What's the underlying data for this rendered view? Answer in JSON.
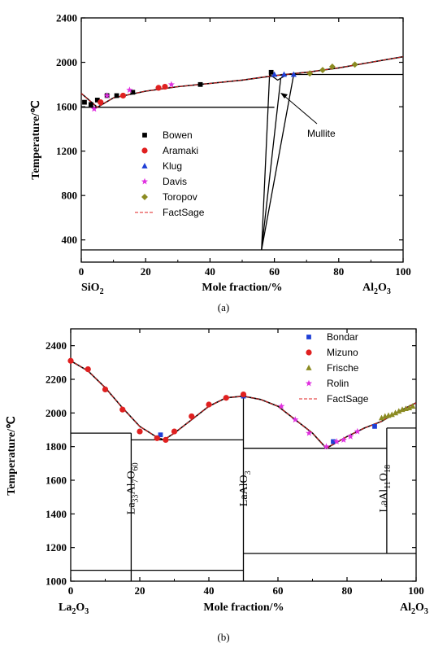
{
  "chart_data": [
    {
      "type": "scatter",
      "caption": "(a)",
      "xlabel": "Mole fraction/%",
      "ylabel": "Temperature/℃",
      "left_component": "SiO",
      "left_component_sub": "2",
      "right_component": "Al",
      "right_component_sub1": "2",
      "right_component_mid": "O",
      "right_component_sub2": "3",
      "xlim": [
        0,
        100
      ],
      "ylim": [
        200,
        2400
      ],
      "xticks": [
        "0",
        "20",
        "40",
        "60",
        "80",
        "100"
      ],
      "yticks": [
        "400",
        "800",
        "1200",
        "1600",
        "2000",
        "2400"
      ],
      "legend_position": "center-left",
      "annotation": "Mullite",
      "series": [
        {
          "name": "Bowen",
          "marker": "square",
          "color": "#000000",
          "x": [
            1,
            3,
            5,
            8,
            11,
            16,
            37,
            59
          ],
          "y": [
            1640,
            1620,
            1660,
            1700,
            1700,
            1730,
            1800,
            1910
          ]
        },
        {
          "name": "Aramaki",
          "marker": "circle",
          "color": "#e02020",
          "x": [
            6,
            13,
            24,
            26
          ],
          "y": [
            1640,
            1700,
            1770,
            1780
          ]
        },
        {
          "name": "Klug",
          "marker": "triangle",
          "color": "#1f3fd6",
          "x": [
            60,
            63,
            66
          ],
          "y": [
            1890,
            1890,
            1890
          ]
        },
        {
          "name": "Davis",
          "marker": "star",
          "color": "#e030e0",
          "x": [
            4,
            8,
            15,
            28
          ],
          "y": [
            1580,
            1700,
            1750,
            1800
          ]
        },
        {
          "name": "Toropov",
          "marker": "diamond",
          "color": "#8b8b22",
          "x": [
            71,
            75,
            78,
            85
          ],
          "y": [
            1900,
            1930,
            1960,
            1980
          ]
        }
      ],
      "calculated": {
        "name": "FactSage",
        "style": "dashed",
        "color": "#e02020",
        "x": [
          0,
          5,
          10,
          20,
          30,
          40,
          50,
          60,
          70,
          80,
          90,
          100
        ],
        "y": [
          1720,
          1595,
          1680,
          1740,
          1780,
          1810,
          1840,
          1880,
          1910,
          1950,
          2000,
          2050
        ]
      },
      "liquidus": {
        "x": [
          0,
          5,
          10,
          20,
          30,
          40,
          50,
          60,
          70,
          80,
          90,
          100
        ],
        "y": [
          1720,
          1595,
          1680,
          1740,
          1780,
          1810,
          1840,
          1880,
          1910,
          1950,
          2000,
          2050
        ]
      },
      "lines": [
        {
          "x": [
            0,
            60
          ],
          "y": [
            1595,
            1595
          ]
        },
        {
          "x": [
            62,
            100
          ],
          "y": [
            1890,
            1890
          ]
        },
        {
          "x": [
            0,
            100
          ],
          "y": [
            310,
            310
          ]
        },
        {
          "x": [
            56,
            58.5
          ],
          "y": [
            310,
            1890
          ]
        },
        {
          "x": [
            56,
            62
          ],
          "y": [
            310,
            1860
          ]
        },
        {
          "x": [
            58.5,
            61,
            64
          ],
          "y": [
            1890,
            1840,
            1890
          ]
        },
        {
          "x": [
            56,
            66
          ],
          "y": [
            310,
            1890
          ]
        }
      ]
    },
    {
      "type": "scatter",
      "caption": "(b)",
      "xlabel": "Mole fraction/%",
      "ylabel": "Temperature/℃",
      "left_component": "La",
      "left_component_sub1": "2",
      "left_component_mid": "O",
      "left_component_sub2": "3",
      "right_component": "Al",
      "right_component_sub1": "2",
      "right_component_mid": "O",
      "right_component_sub2": "3",
      "xlim": [
        0,
        100
      ],
      "ylim": [
        1000,
        2500
      ],
      "xticks": [
        "0",
        "20",
        "40",
        "60",
        "80",
        "100"
      ],
      "yticks": [
        "1000",
        "1200",
        "1400",
        "1600",
        "1800",
        "2000",
        "2200",
        "2400"
      ],
      "legend_position": "top-right",
      "phases": [
        {
          "base": "La",
          "sub1": "33",
          "mid1": "Al",
          "sub2": "7",
          "mid2": "O",
          "sub3": "60",
          "x": 18.5,
          "y": 1550
        },
        {
          "base": "LaAlO",
          "sub1": "3",
          "x": 51,
          "y": 1550
        },
        {
          "base": "LaAl",
          "sub1": "11",
          "mid1": "O",
          "sub2": "18",
          "x": 91.5,
          "y": 1550
        }
      ],
      "series": [
        {
          "name": "Bondar",
          "marker": "square",
          "color": "#1f3fd6",
          "x": [
            26,
            50,
            76,
            88
          ],
          "y": [
            1870,
            2100,
            1830,
            1920
          ]
        },
        {
          "name": "Mizuno",
          "marker": "circle",
          "color": "#e02020",
          "x": [
            0,
            5,
            10,
            15,
            20,
            25,
            27.5,
            30,
            35,
            40,
            45,
            50
          ],
          "y": [
            2310,
            2260,
            2140,
            2020,
            1890,
            1850,
            1840,
            1890,
            1980,
            2050,
            2090,
            2110
          ]
        },
        {
          "name": "Frische",
          "marker": "triangle",
          "color": "#8b8b22",
          "x": [
            90,
            91,
            92,
            93,
            94,
            95,
            96,
            97,
            98,
            99
          ],
          "y": [
            1970,
            1980,
            1985,
            1990,
            2000,
            2010,
            2020,
            2025,
            2030,
            2040
          ]
        },
        {
          "name": "Rolin",
          "marker": "star",
          "color": "#e030e0",
          "x": [
            61,
            65,
            69,
            74,
            77,
            79,
            81,
            83
          ],
          "y": [
            2040,
            1960,
            1880,
            1800,
            1830,
            1840,
            1860,
            1890
          ]
        }
      ],
      "calculated": {
        "name": "FactSage",
        "style": "dashed",
        "color": "#e02020",
        "x": [
          0,
          5,
          10,
          15,
          20,
          25,
          27,
          30,
          35,
          40,
          45,
          50,
          55,
          60,
          65,
          70,
          74,
          80,
          85,
          90,
          95,
          100
        ],
        "y": [
          2310,
          2250,
          2150,
          2030,
          1920,
          1855,
          1840,
          1880,
          1960,
          2040,
          2090,
          2100,
          2080,
          2040,
          1960,
          1880,
          1790,
          1860,
          1910,
          1950,
          2010,
          2060
        ]
      },
      "liquidus": {
        "x": [
          0,
          5,
          10,
          15,
          20,
          25,
          27,
          30,
          35,
          40,
          45,
          50,
          55,
          60,
          65,
          70,
          74,
          80,
          85,
          90,
          95,
          100
        ],
        "y": [
          2310,
          2250,
          2150,
          2030,
          1920,
          1855,
          1840,
          1880,
          1960,
          2040,
          2090,
          2100,
          2080,
          2040,
          1960,
          1880,
          1790,
          1860,
          1910,
          1950,
          2010,
          2060
        ]
      },
      "lines": [
        {
          "x": [
            0,
            17.5
          ],
          "y": [
            1880,
            1880
          ]
        },
        {
          "x": [
            17.5,
            50
          ],
          "y": [
            1840,
            1840
          ]
        },
        {
          "x": [
            50,
            91.5
          ],
          "y": [
            1790,
            1790
          ]
        },
        {
          "x": [
            91.5,
            100
          ],
          "y": [
            1910,
            1910
          ]
        },
        {
          "x": [
            0,
            50
          ],
          "y": [
            1065,
            1065
          ]
        },
        {
          "x": [
            50,
            100
          ],
          "y": [
            1165,
            1165
          ]
        },
        {
          "x": [
            17.5,
            17.5
          ],
          "y": [
            1000,
            1880
          ]
        },
        {
          "x": [
            50,
            50
          ],
          "y": [
            1000,
            2100
          ]
        },
        {
          "x": [
            91.5,
            91.5
          ],
          "y": [
            1165,
            1910
          ]
        }
      ]
    }
  ]
}
